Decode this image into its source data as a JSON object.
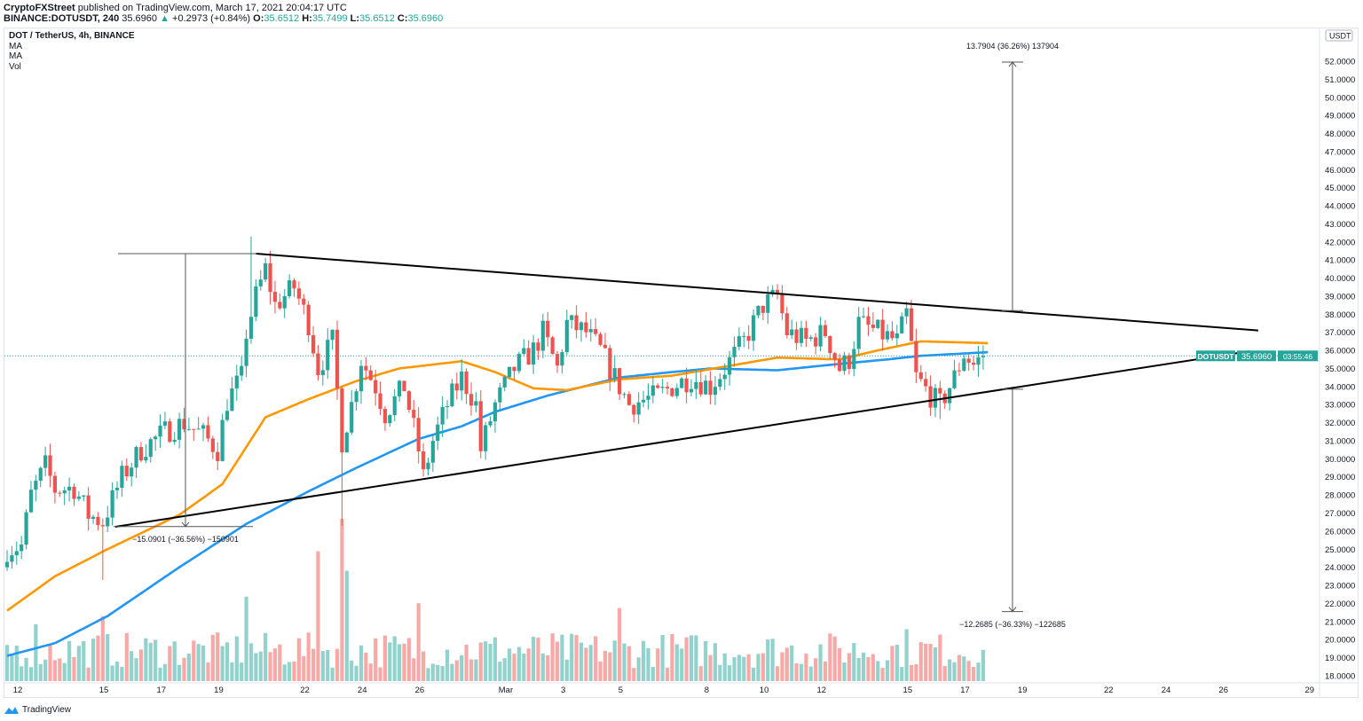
{
  "header": {
    "publisher": "CryptoFXStreet",
    "published_text": "published on TradingView.com, March 17, 2021 20:04:17 UTC",
    "symbol": "BINANCE:DOTUSDT, 240",
    "last": "35.6960",
    "change": "+0.2973 (+0.84%)",
    "o_label": "O:",
    "o": "35.6512",
    "h_label": "H:",
    "h": "35.7499",
    "l_label": "L:",
    "l": "35.6512",
    "c_label": "C:",
    "c": "35.6960"
  },
  "legend": {
    "title": "DOT / TetherUS, 4h, BINANCE",
    "indicators": [
      "MA",
      "MA",
      "Vol"
    ]
  },
  "price_axis": {
    "currency": "USDT",
    "last_symbol": "DOTUSDT",
    "last_price": "35.6960",
    "countdown": "03:55:46"
  },
  "footer": {
    "brand": "TradingView"
  },
  "colors": {
    "up": "#26a69a",
    "down": "#ef5350",
    "ma_fast": "#ff9800",
    "ma_slow": "#2196f3",
    "drawing": "#000000"
  },
  "chart_data": {
    "type": "candlestick",
    "title": "DOT / TetherUS, 4h, BINANCE",
    "interval": "4h",
    "ylim": [
      18,
      52.5
    ],
    "yticks": [
      18,
      19,
      20,
      21,
      22,
      23,
      24,
      25,
      26,
      27,
      28,
      29,
      30,
      31,
      32,
      33,
      34,
      35,
      36,
      37,
      38,
      39,
      40,
      41,
      42,
      43,
      44,
      45,
      46,
      47,
      48,
      49,
      50,
      51,
      52
    ],
    "xticks": [
      {
        "label": "12",
        "day": 0
      },
      {
        "label": "15",
        "day": 3
      },
      {
        "label": "17",
        "day": 5
      },
      {
        "label": "19",
        "day": 7
      },
      {
        "label": "22",
        "day": 10
      },
      {
        "label": "24",
        "day": 12
      },
      {
        "label": "26",
        "day": 14
      },
      {
        "label": "Mar",
        "day": 17
      },
      {
        "label": "3",
        "day": 19
      },
      {
        "label": "5",
        "day": 21
      },
      {
        "label": "8",
        "day": 24
      },
      {
        "label": "10",
        "day": 26
      },
      {
        "label": "12",
        "day": 28
      },
      {
        "label": "15",
        "day": 31
      },
      {
        "label": "17",
        "day": 33
      },
      {
        "label": "19",
        "day": 35
      },
      {
        "label": "22",
        "day": 38
      },
      {
        "label": "24",
        "day": 40
      },
      {
        "label": "26",
        "day": 42
      },
      {
        "label": "29",
        "day": 45
      }
    ],
    "candle_count": 205,
    "price_path_close": [
      [
        0,
        25
      ],
      [
        3,
        25.2
      ],
      [
        5,
        28
      ],
      [
        8,
        29.6
      ],
      [
        10,
        28.3
      ],
      [
        14,
        28.4
      ],
      [
        17,
        26.9
      ],
      [
        20,
        26.5
      ],
      [
        24,
        29
      ],
      [
        28,
        30.5
      ],
      [
        33,
        31.5
      ],
      [
        37,
        32
      ],
      [
        41,
        31.3
      ],
      [
        44,
        30.5
      ],
      [
        46,
        33.2
      ],
      [
        49,
        34.5
      ],
      [
        50,
        37
      ],
      [
        52,
        39
      ],
      [
        54,
        40.5
      ],
      [
        56,
        38.5
      ],
      [
        60,
        39.5
      ],
      [
        63,
        37.5
      ],
      [
        65,
        35
      ],
      [
        68,
        36.5
      ],
      [
        70,
        31
      ],
      [
        72,
        33
      ],
      [
        74,
        35.5
      ],
      [
        77,
        34
      ],
      [
        79,
        32.5
      ],
      [
        83,
        34
      ],
      [
        86,
        30.5
      ],
      [
        87,
        29
      ],
      [
        89,
        31
      ],
      [
        92,
        33
      ],
      [
        95,
        34.5
      ],
      [
        98,
        33
      ],
      [
        99,
        30.5
      ],
      [
        102,
        33
      ],
      [
        106,
        35
      ],
      [
        110,
        36
      ],
      [
        112,
        37
      ],
      [
        115,
        35
      ],
      [
        117,
        37.5
      ],
      [
        121,
        37
      ],
      [
        124,
        36
      ],
      [
        127,
        34.5
      ],
      [
        130,
        33
      ],
      [
        136,
        33.5
      ],
      [
        139,
        34
      ],
      [
        143,
        34.5
      ],
      [
        147,
        34
      ],
      [
        150,
        35
      ],
      [
        154,
        36.5
      ],
      [
        158,
        38.5
      ],
      [
        161,
        39
      ],
      [
        163,
        37
      ],
      [
        167,
        36.5
      ],
      [
        171,
        37
      ],
      [
        174,
        35
      ],
      [
        176,
        35.5
      ],
      [
        178,
        37.5
      ],
      [
        182,
        37
      ],
      [
        186,
        36.5
      ],
      [
        188,
        38
      ],
      [
        190,
        34.5
      ],
      [
        193,
        33.5
      ],
      [
        195,
        33
      ],
      [
        198,
        34.5
      ],
      [
        200,
        35.8
      ],
      [
        202,
        35.2
      ],
      [
        204,
        35.696
      ]
    ],
    "wick_extremes": [
      {
        "index": 20,
        "low": 23.3
      },
      {
        "index": 51,
        "high": 42.3
      },
      {
        "index": 70,
        "low": 26.3
      },
      {
        "index": 160,
        "high": 39.6
      },
      {
        "index": 195,
        "low": 32.2
      }
    ],
    "ma_fast": [
      [
        0,
        21.6
      ],
      [
        10,
        23.5
      ],
      [
        21,
        25
      ],
      [
        36,
        26.9
      ],
      [
        45,
        28.6
      ],
      [
        54,
        32.3
      ],
      [
        63,
        33.3
      ],
      [
        73,
        34.3
      ],
      [
        82,
        35
      ],
      [
        95,
        35.4
      ],
      [
        102,
        34.8
      ],
      [
        110,
        33.9
      ],
      [
        117,
        33.8
      ],
      [
        128,
        34.4
      ],
      [
        139,
        34.6
      ],
      [
        150,
        35.1
      ],
      [
        161,
        35.6
      ],
      [
        174,
        35.5
      ],
      [
        182,
        36
      ],
      [
        191,
        36.5
      ],
      [
        205,
        36.4
      ]
    ],
    "ma_slow": [
      [
        0,
        19.1
      ],
      [
        10,
        19.8
      ],
      [
        21,
        21.3
      ],
      [
        36,
        24
      ],
      [
        50,
        26.4
      ],
      [
        63,
        28.2
      ],
      [
        73,
        29.5
      ],
      [
        86,
        31.1
      ],
      [
        95,
        31.8
      ],
      [
        102,
        32.6
      ],
      [
        113,
        33.5
      ],
      [
        128,
        34.5
      ],
      [
        139,
        34.8
      ],
      [
        147,
        35
      ],
      [
        161,
        34.9
      ],
      [
        172,
        35.2
      ],
      [
        184,
        35.5
      ],
      [
        191,
        35.7
      ],
      [
        205,
        35.9
      ]
    ],
    "volume_relative_spikes": [
      [
        6,
        0.35
      ],
      [
        20,
        0.4
      ],
      [
        50,
        0.52
      ],
      [
        65,
        0.8
      ],
      [
        70,
        1.0
      ],
      [
        71,
        0.68
      ],
      [
        86,
        0.48
      ],
      [
        128,
        0.45
      ],
      [
        188,
        0.32
      ]
    ],
    "drawings": {
      "triangle_upper": [
        [
          52,
          41.35
        ],
        [
          261.5,
          37.1
        ]
      ],
      "triangle_lower": [
        [
          22.6,
          26.24
        ],
        [
          259.6,
          35.95
        ]
      ],
      "measure_left": {
        "top": 41.35,
        "bottom": 26.25,
        "label": "−15.0901 (−36.56%) −150901"
      },
      "measure_right_up": {
        "from": 38.2,
        "to": 51.95,
        "label": "13.7904 (36.26%) 137904"
      },
      "measure_right_down": {
        "from": 33.85,
        "to": 21.55,
        "label": "−12.2685 (−36.33%) −122685"
      }
    }
  }
}
